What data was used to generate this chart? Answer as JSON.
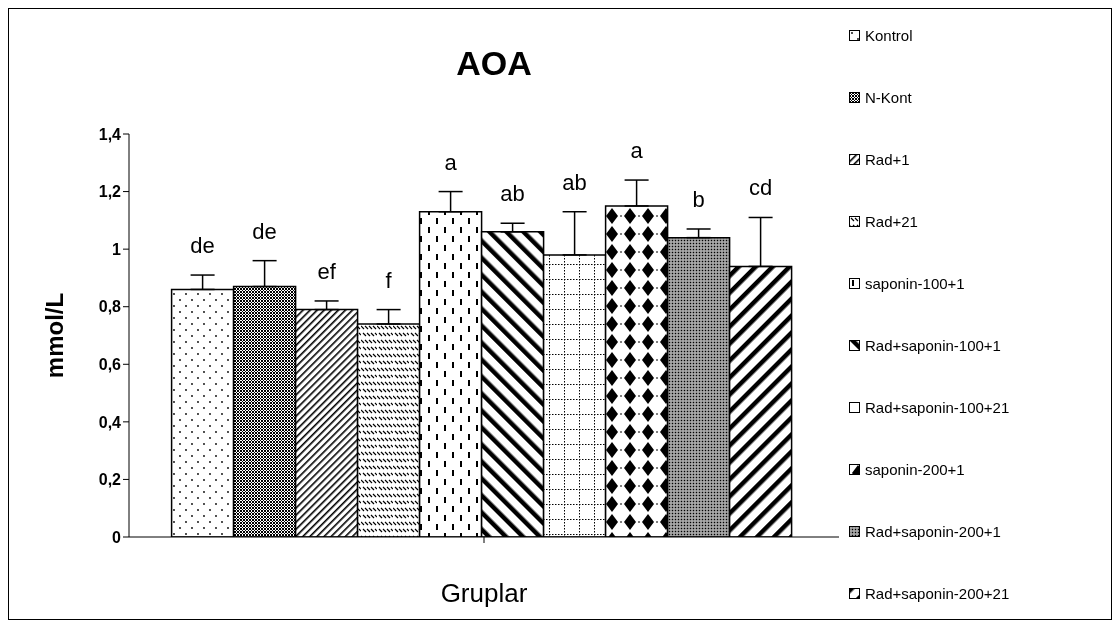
{
  "chart_data": {
    "type": "bar",
    "title": "AOA",
    "xlabel": "Gruplar",
    "ylabel": "mmol/L",
    "categories": [
      null
    ],
    "series": [
      {
        "name": "Kontrol",
        "color": "#000000",
        "values": [
          0.86
        ],
        "errors": [
          0.05
        ]
      },
      {
        "name": "N-Kont",
        "color": "#000000",
        "values": [
          0.87
        ],
        "errors": [
          0.09
        ]
      },
      {
        "name": "Rad+1",
        "color": "#000000",
        "values": [
          0.79
        ],
        "errors": [
          0.03
        ]
      },
      {
        "name": "Rad+21",
        "color": "#000000",
        "values": [
          0.74
        ],
        "errors": [
          0.05
        ]
      },
      {
        "name": "saponin-100+1",
        "color": "#000000",
        "values": [
          1.13
        ],
        "errors": [
          0.07
        ]
      },
      {
        "name": "Rad+saponin-100+1",
        "color": "#000000",
        "values": [
          1.06
        ],
        "errors": [
          0.03
        ]
      },
      {
        "name": "Rad+saponin-100+21",
        "color": "#000000",
        "values": [
          0.98
        ],
        "errors": [
          0.15
        ]
      },
      {
        "name": "saponin-200+1",
        "color": "#000000",
        "values": [
          1.15
        ],
        "errors": [
          0.09
        ]
      },
      {
        "name": "Rad+saponin-200+1",
        "color": "#000000",
        "values": [
          1.04
        ],
        "errors": [
          0.03
        ]
      },
      {
        "name": "Rad+saponin-200+21",
        "color": "#000000",
        "values": [
          0.94
        ],
        "errors": [
          0.17
        ]
      }
    ],
    "annotations": [
      "de",
      "de",
      "ef",
      "f",
      "a",
      "ab",
      "ab",
      "a",
      "b",
      "cd"
    ],
    "ylim": [
      0,
      1.4
    ],
    "yticks": [
      0,
      {
        "value": 0.2,
        "label": "0,2"
      },
      {
        "value": 0.4,
        "label": "0,4"
      },
      {
        "value": 0.6,
        "label": "0,6"
      },
      {
        "value": 0.8,
        "label": "0,8"
      },
      1,
      {
        "value": 1.2,
        "label": "1,2"
      },
      {
        "value": 1.4,
        "label": "1,4"
      }
    ],
    "grid": false,
    "legend": "right"
  }
}
